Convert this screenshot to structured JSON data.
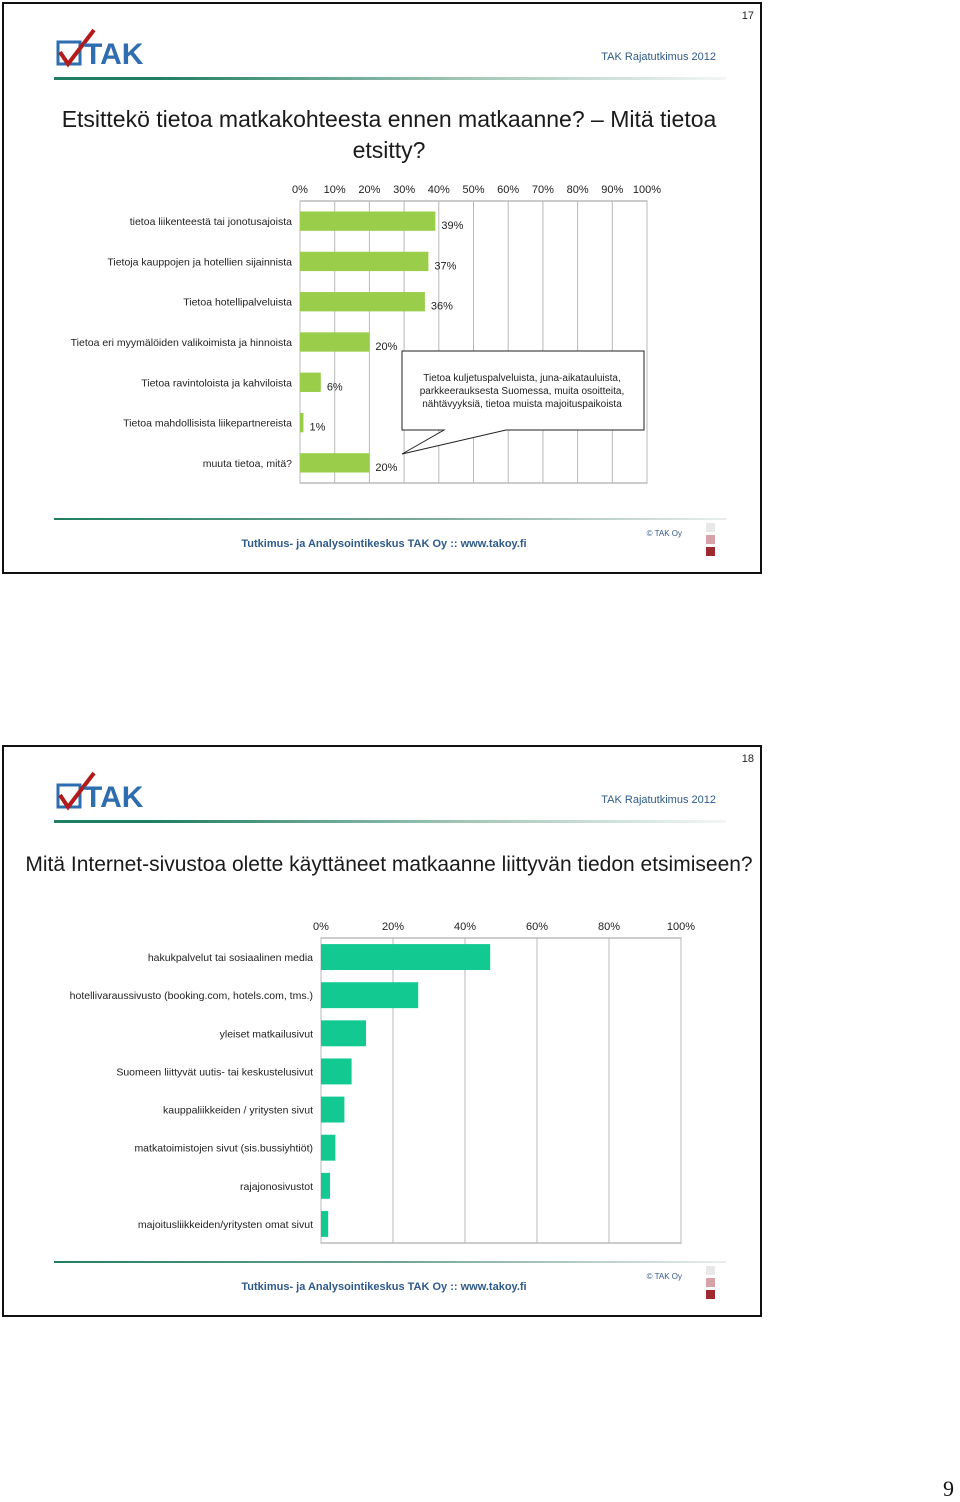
{
  "page": {
    "number": "9"
  },
  "brand": {
    "logo_text": "TAK",
    "header_right": "TAK Rajatutkimus 2012",
    "footer_text": "Tutkimus- ja Analysointikeskus TAK Oy   ::   www.takoy.fi",
    "copyright": "© TAK Oy",
    "colors": {
      "bar1": "#9acd4a",
      "bar2": "#12c992",
      "header_blue": "#2e5a8c",
      "logo_red": "#b31b1b",
      "logo_blue": "#2e6db0"
    }
  },
  "slides": [
    {
      "number": "17",
      "title": "Etsittekö tietoa matkakohteesta ennen matkaanne? – Mitä tietoa etsitty?",
      "callout": "Tietoa kuljetuspalveluista, juna-aikatauluista, parkkeerauksesta Suomessa, muita osoitteita, nähtävyyksiä, tietoa muista majoituspaikoista"
    },
    {
      "number": "18",
      "title": "Mitä Internet-sivustoa olette käyttäneet matkaanne liittyvän tiedon etsimiseen?"
    }
  ],
  "chart_data": [
    {
      "type": "bar",
      "orientation": "horizontal",
      "categories": [
        "tietoa liikenteestä tai jonotusajoista",
        "Tietoja kauppojen ja hotellien sijainnista",
        "Tietoa hotellipalveluista",
        "Tietoa eri myymälöiden valikoimista ja hinnoista",
        "Tietoa ravintoloista ja kahviloista",
        "Tietoa mahdollisista liikepartnereista",
        "muuta tietoa, mitä?"
      ],
      "values": [
        39,
        37,
        36,
        20,
        6,
        1,
        20
      ],
      "data_labels": [
        "39%",
        "37%",
        "36%",
        "20%",
        "6%",
        "1%",
        "20%"
      ],
      "xlim": [
        0,
        100
      ],
      "xticks": [
        "0%",
        "10%",
        "20%",
        "30%",
        "40%",
        "50%",
        "60%",
        "70%",
        "80%",
        "90%",
        "100%"
      ],
      "grid": true,
      "color": "#9acd4a"
    },
    {
      "type": "bar",
      "orientation": "horizontal",
      "categories": [
        "hakukpalvelut tai sosiaalinen media",
        "hotellivaraussivusto (booking.com, hotels.com, tms.)",
        "yleiset matkailusivut",
        "Suomeen liittyvät uutis- tai keskustelusivut",
        "kauppaliikkeiden / yritysten sivut",
        "matkatoimistojen sivut (sis.bussiyhtiöt)",
        "rajajonosivustot",
        "majoitusliikkeiden/yritysten omat sivut"
      ],
      "values": [
        47,
        27,
        12.5,
        8.5,
        6.5,
        4,
        2.5,
        2
      ],
      "xlim": [
        0,
        100
      ],
      "xticks": [
        "0%",
        "20%",
        "40%",
        "60%",
        "80%",
        "100%"
      ],
      "grid": true,
      "color": "#12c992"
    }
  ]
}
